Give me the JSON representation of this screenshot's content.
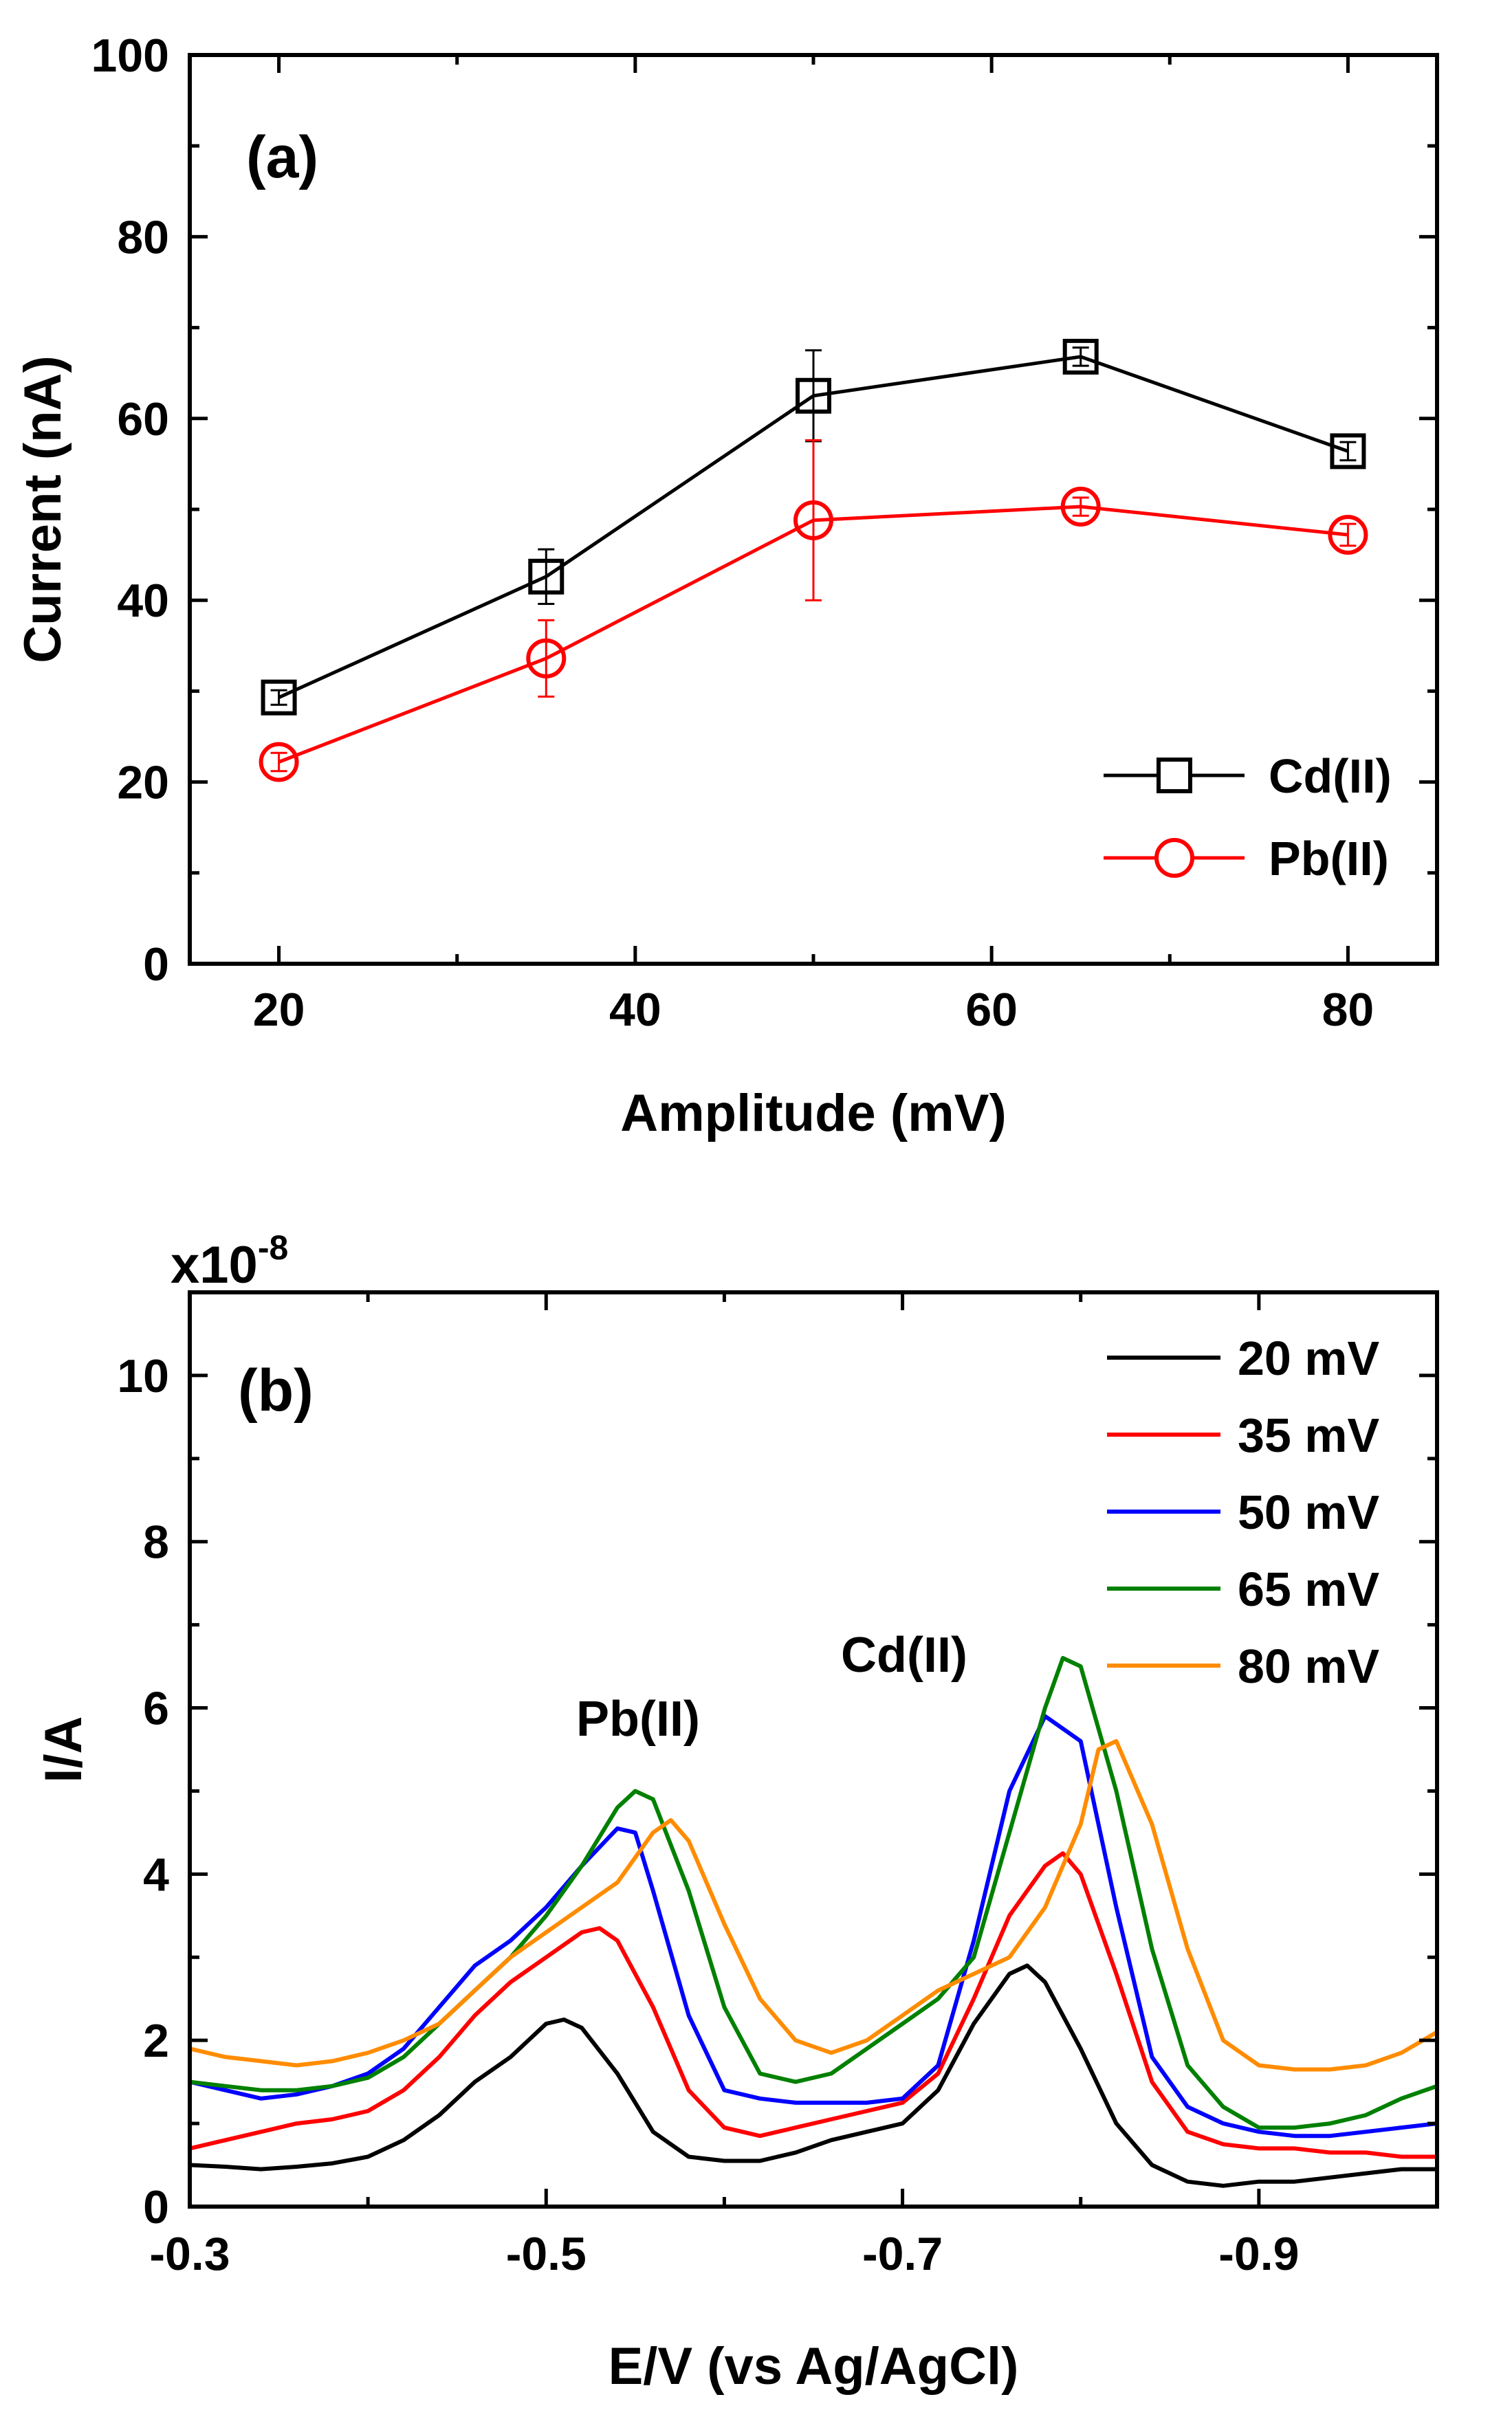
{
  "chart_data": [
    {
      "id": "a",
      "type": "line",
      "panel_label": "(a)",
      "xlabel": "Amplitude (mV)",
      "ylabel": "Current (nA)",
      "xlim": [
        15,
        85
      ],
      "ylim": [
        0,
        100
      ],
      "xticks": [
        20,
        40,
        60,
        80
      ],
      "yticks": [
        0,
        20,
        40,
        60,
        80,
        100
      ],
      "legend_position": "bottom-right",
      "series": [
        {
          "name": "Cd(II)",
          "color": "#000000",
          "marker": "square",
          "x": [
            20,
            35,
            50,
            65,
            80
          ],
          "y": [
            29.3,
            42.6,
            62.5,
            66.8,
            56.4
          ],
          "err": [
            0.8,
            3.0,
            5.0,
            1.0,
            1.0
          ]
        },
        {
          "name": "Pb(II)",
          "color": "#ff0000",
          "marker": "circle",
          "x": [
            20,
            35,
            50,
            65,
            80
          ],
          "y": [
            22.2,
            33.6,
            48.8,
            50.3,
            47.2
          ],
          "err": [
            1.0,
            4.2,
            8.8,
            1.0,
            1.2
          ]
        }
      ]
    },
    {
      "id": "b",
      "type": "line",
      "panel_label": "(b)",
      "xlabel": "E/V (vs Ag/AgCl)",
      "ylabel": "I/A",
      "y_multiplier_base": "x10",
      "y_multiplier_exp": "-8",
      "xlim": [
        -0.3,
        -1.0
      ],
      "ylim": [
        0,
        11
      ],
      "xticks": [
        -0.3,
        -0.5,
        -0.7,
        -0.9
      ],
      "xtick_labels": [
        "-0.3",
        "-0.5",
        "-0.7",
        "-0.9"
      ],
      "yticks": [
        0,
        2,
        4,
        6,
        8,
        10
      ],
      "legend_position": "top-right",
      "annotations": [
        {
          "text": "Pb(II)",
          "x": -0.54,
          "y": 5.6
        },
        {
          "text": "Cd(II)",
          "x": -0.74,
          "y": 6.4
        }
      ],
      "series": [
        {
          "name": "20 mV",
          "color": "#000000",
          "x": [
            -0.3,
            -0.32,
            -0.34,
            -0.36,
            -0.38,
            -0.4,
            -0.42,
            -0.44,
            -0.46,
            -0.48,
            -0.5,
            -0.51,
            -0.52,
            -0.54,
            -0.56,
            -0.58,
            -0.6,
            -0.62,
            -0.64,
            -0.66,
            -0.68,
            -0.7,
            -0.72,
            -0.74,
            -0.76,
            -0.77,
            -0.78,
            -0.8,
            -0.82,
            -0.84,
            -0.86,
            -0.88,
            -0.9,
            -0.92,
            -0.94,
            -0.96,
            -0.98,
            -1.0
          ],
          "y": [
            0.5,
            0.48,
            0.45,
            0.48,
            0.52,
            0.6,
            0.8,
            1.1,
            1.5,
            1.8,
            2.2,
            2.25,
            2.15,
            1.6,
            0.9,
            0.6,
            0.55,
            0.55,
            0.65,
            0.8,
            0.9,
            1.0,
            1.4,
            2.2,
            2.8,
            2.9,
            2.7,
            1.9,
            1.0,
            0.5,
            0.3,
            0.25,
            0.3,
            0.3,
            0.35,
            0.4,
            0.45,
            0.45
          ]
        },
        {
          "name": "35 mV",
          "color": "#ff0000",
          "x": [
            -0.3,
            -0.32,
            -0.34,
            -0.36,
            -0.38,
            -0.4,
            -0.42,
            -0.44,
            -0.46,
            -0.48,
            -0.5,
            -0.52,
            -0.53,
            -0.54,
            -0.56,
            -0.58,
            -0.6,
            -0.62,
            -0.64,
            -0.66,
            -0.68,
            -0.7,
            -0.72,
            -0.74,
            -0.76,
            -0.78,
            -0.79,
            -0.8,
            -0.82,
            -0.84,
            -0.86,
            -0.88,
            -0.9,
            -0.92,
            -0.94,
            -0.96,
            -0.98,
            -1.0
          ],
          "y": [
            0.7,
            0.8,
            0.9,
            1.0,
            1.05,
            1.15,
            1.4,
            1.8,
            2.3,
            2.7,
            3.0,
            3.3,
            3.35,
            3.2,
            2.4,
            1.4,
            0.95,
            0.85,
            0.95,
            1.05,
            1.15,
            1.25,
            1.6,
            2.5,
            3.5,
            4.1,
            4.25,
            4.0,
            2.8,
            1.5,
            0.9,
            0.75,
            0.7,
            0.7,
            0.65,
            0.65,
            0.6,
            0.6
          ]
        },
        {
          "name": "50 mV",
          "color": "#0000ff",
          "x": [
            -0.3,
            -0.32,
            -0.34,
            -0.36,
            -0.38,
            -0.4,
            -0.42,
            -0.44,
            -0.46,
            -0.48,
            -0.5,
            -0.52,
            -0.54,
            -0.55,
            -0.56,
            -0.58,
            -0.6,
            -0.62,
            -0.64,
            -0.66,
            -0.68,
            -0.7,
            -0.72,
            -0.74,
            -0.76,
            -0.78,
            -0.8,
            -0.82,
            -0.84,
            -0.86,
            -0.88,
            -0.9,
            -0.92,
            -0.94,
            -0.96,
            -0.98,
            -1.0
          ],
          "y": [
            1.5,
            1.4,
            1.3,
            1.35,
            1.45,
            1.6,
            1.9,
            2.4,
            2.9,
            3.2,
            3.6,
            4.1,
            4.55,
            4.5,
            3.8,
            2.3,
            1.4,
            1.3,
            1.25,
            1.25,
            1.25,
            1.3,
            1.7,
            3.2,
            5.0,
            5.9,
            5.6,
            3.6,
            1.8,
            1.2,
            1.0,
            0.9,
            0.85,
            0.85,
            0.9,
            0.95,
            1.0
          ]
        },
        {
          "name": "65 mV",
          "color": "#008000",
          "x": [
            -0.3,
            -0.32,
            -0.34,
            -0.36,
            -0.38,
            -0.4,
            -0.42,
            -0.44,
            -0.46,
            -0.48,
            -0.5,
            -0.52,
            -0.54,
            -0.55,
            -0.56,
            -0.58,
            -0.6,
            -0.62,
            -0.64,
            -0.66,
            -0.68,
            -0.7,
            -0.72,
            -0.74,
            -0.76,
            -0.78,
            -0.79,
            -0.8,
            -0.82,
            -0.84,
            -0.86,
            -0.88,
            -0.9,
            -0.92,
            -0.94,
            -0.96,
            -0.98,
            -1.0
          ],
          "y": [
            1.5,
            1.45,
            1.4,
            1.4,
            1.45,
            1.55,
            1.8,
            2.2,
            2.6,
            3.0,
            3.5,
            4.1,
            4.8,
            5.0,
            4.9,
            3.8,
            2.4,
            1.6,
            1.5,
            1.6,
            1.9,
            2.2,
            2.5,
            3.0,
            4.5,
            6.0,
            6.6,
            6.5,
            5.0,
            3.1,
            1.7,
            1.2,
            0.95,
            0.95,
            1.0,
            1.1,
            1.3,
            1.45
          ]
        },
        {
          "name": "80 mV",
          "color": "#ff8c00",
          "x": [
            -0.3,
            -0.32,
            -0.34,
            -0.36,
            -0.38,
            -0.4,
            -0.42,
            -0.44,
            -0.46,
            -0.48,
            -0.5,
            -0.52,
            -0.54,
            -0.56,
            -0.57,
            -0.58,
            -0.6,
            -0.62,
            -0.64,
            -0.66,
            -0.68,
            -0.7,
            -0.72,
            -0.74,
            -0.76,
            -0.78,
            -0.8,
            -0.81,
            -0.82,
            -0.84,
            -0.86,
            -0.88,
            -0.9,
            -0.92,
            -0.94,
            -0.96,
            -0.98,
            -1.0
          ],
          "y": [
            1.9,
            1.8,
            1.75,
            1.7,
            1.75,
            1.85,
            2.0,
            2.2,
            2.6,
            3.0,
            3.3,
            3.6,
            3.9,
            4.5,
            4.65,
            4.4,
            3.4,
            2.5,
            2.0,
            1.85,
            2.0,
            2.3,
            2.6,
            2.8,
            3.0,
            3.6,
            4.6,
            5.5,
            5.6,
            4.6,
            3.1,
            2.0,
            1.7,
            1.65,
            1.65,
            1.7,
            1.85,
            2.1
          ]
        }
      ]
    }
  ]
}
